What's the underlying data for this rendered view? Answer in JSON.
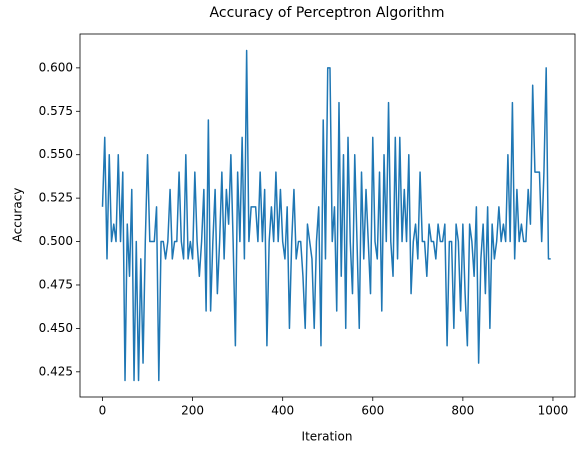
{
  "chart_data": {
    "type": "line",
    "title": "Accuracy of Perceptron Algorithm",
    "x_label": "Iteration",
    "y_label": "Accuracy",
    "xlim": [
      -49.95,
      1048.95
    ],
    "ylim": [
      0.4105,
      0.6195
    ],
    "xticks": [
      0,
      200,
      400,
      600,
      800,
      1000
    ],
    "yticks": [
      {
        "value": 0.425,
        "label": "0.425"
      },
      {
        "value": 0.45,
        "label": "0.450"
      },
      {
        "value": 0.475,
        "label": "0.475"
      },
      {
        "value": 0.5,
        "label": "0.500"
      },
      {
        "value": 0.525,
        "label": "0.525"
      },
      {
        "value": 0.55,
        "label": "0.550"
      },
      {
        "value": 0.575,
        "label": "0.575"
      },
      {
        "value": 0.6,
        "label": "0.600"
      }
    ],
    "color": "#1f77b4",
    "x": [
      0,
      5,
      10,
      15,
      20,
      25,
      30,
      35,
      40,
      45,
      50,
      55,
      60,
      65,
      70,
      75,
      80,
      85,
      90,
      95,
      100,
      105,
      110,
      115,
      120,
      125,
      130,
      135,
      140,
      145,
      150,
      155,
      160,
      165,
      170,
      175,
      180,
      185,
      190,
      195,
      200,
      205,
      210,
      215,
      220,
      225,
      230,
      235,
      240,
      245,
      250,
      255,
      260,
      265,
      270,
      275,
      280,
      285,
      290,
      295,
      300,
      305,
      310,
      315,
      320,
      325,
      330,
      335,
      340,
      345,
      350,
      355,
      360,
      365,
      370,
      375,
      380,
      385,
      390,
      395,
      400,
      405,
      410,
      415,
      420,
      425,
      430,
      435,
      440,
      445,
      450,
      455,
      460,
      465,
      470,
      475,
      480,
      485,
      490,
      495,
      500,
      505,
      510,
      515,
      520,
      525,
      530,
      535,
      540,
      545,
      550,
      555,
      560,
      565,
      570,
      575,
      580,
      585,
      590,
      595,
      600,
      605,
      610,
      615,
      620,
      625,
      630,
      635,
      640,
      645,
      650,
      655,
      660,
      665,
      670,
      675,
      680,
      685,
      690,
      695,
      700,
      705,
      710,
      715,
      720,
      725,
      730,
      735,
      740,
      745,
      750,
      755,
      760,
      765,
      770,
      775,
      780,
      785,
      790,
      795,
      800,
      805,
      810,
      815,
      820,
      825,
      830,
      835,
      840,
      845,
      850,
      855,
      860,
      865,
      870,
      875,
      880,
      885,
      890,
      895,
      900,
      905,
      910,
      915,
      920,
      925,
      930,
      935,
      940,
      945,
      950,
      955,
      960,
      965,
      970,
      975,
      980,
      985,
      990,
      995
    ],
    "values": [
      0.52,
      0.56,
      0.49,
      0.55,
      0.5,
      0.51,
      0.5,
      0.55,
      0.5,
      0.54,
      0.42,
      0.51,
      0.48,
      0.53,
      0.42,
      0.5,
      0.42,
      0.49,
      0.43,
      0.5,
      0.55,
      0.5,
      0.5,
      0.5,
      0.52,
      0.42,
      0.5,
      0.5,
      0.49,
      0.5,
      0.53,
      0.49,
      0.5,
      0.5,
      0.54,
      0.5,
      0.49,
      0.55,
      0.49,
      0.5,
      0.49,
      0.54,
      0.5,
      0.48,
      0.5,
      0.53,
      0.46,
      0.57,
      0.46,
      0.5,
      0.53,
      0.47,
      0.5,
      0.54,
      0.49,
      0.53,
      0.51,
      0.55,
      0.5,
      0.44,
      0.54,
      0.5,
      0.56,
      0.49,
      0.61,
      0.5,
      0.52,
      0.52,
      0.52,
      0.5,
      0.54,
      0.5,
      0.53,
      0.44,
      0.5,
      0.52,
      0.5,
      0.54,
      0.5,
      0.53,
      0.5,
      0.49,
      0.52,
      0.45,
      0.5,
      0.53,
      0.49,
      0.5,
      0.5,
      0.48,
      0.45,
      0.51,
      0.5,
      0.49,
      0.45,
      0.5,
      0.52,
      0.44,
      0.57,
      0.49,
      0.6,
      0.6,
      0.5,
      0.52,
      0.46,
      0.58,
      0.48,
      0.55,
      0.45,
      0.56,
      0.5,
      0.47,
      0.55,
      0.5,
      0.45,
      0.54,
      0.49,
      0.53,
      0.5,
      0.47,
      0.56,
      0.5,
      0.49,
      0.54,
      0.46,
      0.55,
      0.5,
      0.58,
      0.5,
      0.48,
      0.56,
      0.49,
      0.56,
      0.5,
      0.53,
      0.5,
      0.55,
      0.47,
      0.5,
      0.51,
      0.49,
      0.54,
      0.5,
      0.5,
      0.48,
      0.51,
      0.5,
      0.5,
      0.49,
      0.51,
      0.5,
      0.5,
      0.51,
      0.44,
      0.5,
      0.5,
      0.45,
      0.51,
      0.5,
      0.46,
      0.51,
      0.47,
      0.44,
      0.51,
      0.5,
      0.48,
      0.52,
      0.43,
      0.49,
      0.51,
      0.47,
      0.52,
      0.45,
      0.51,
      0.49,
      0.5,
      0.52,
      0.5,
      0.51,
      0.5,
      0.55,
      0.5,
      0.58,
      0.49,
      0.53,
      0.5,
      0.51,
      0.5,
      0.5,
      0.53,
      0.51,
      0.59,
      0.54,
      0.54,
      0.54,
      0.5,
      0.54,
      0.6,
      0.49,
      0.49
    ]
  }
}
